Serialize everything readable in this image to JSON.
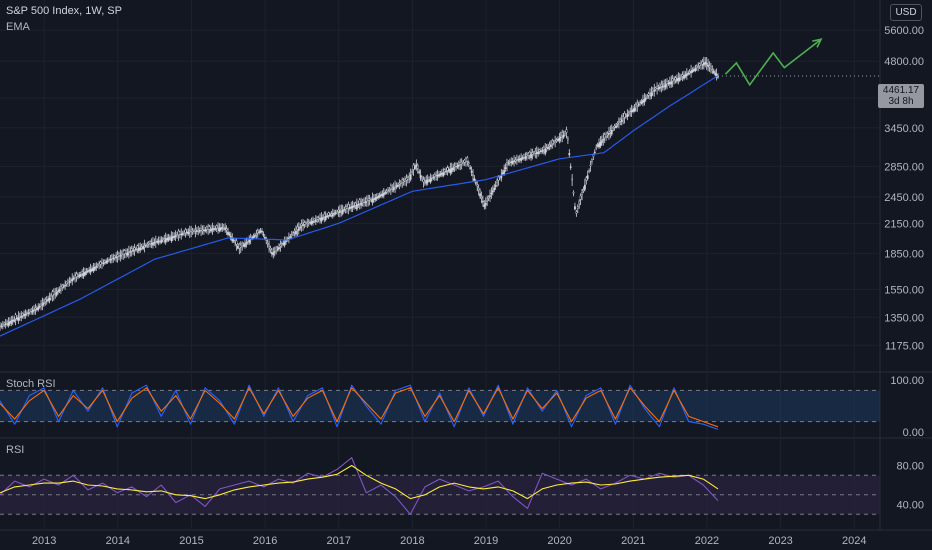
{
  "header": {
    "symbol_title": "S&P 500 Index, 1W, SP",
    "indicator_label": "EMA",
    "currency_button": "USD"
  },
  "price_tag": {
    "price": "4461.17",
    "countdown": "3d 8h"
  },
  "panes": {
    "stoch_label": "Stoch RSI",
    "rsi_label": "RSI"
  },
  "colors": {
    "background": "#131722",
    "grid": "#1e222d",
    "candle": "#d1d4dc",
    "ema": "#2962ff",
    "projection": "#4caf50",
    "stoch_k": "#2962ff",
    "stoch_d": "#ff6d00",
    "stoch_band": "#1e3a5f",
    "rsi_line": "#7e57c2",
    "rsi_ma": "#ffeb3b",
    "rsi_band": "#2a2440",
    "axis_text": "#b2b5be"
  },
  "chart_data": [
    {
      "type": "candlestick",
      "title": "S&P 500 Index, 1W, SP",
      "scale": "log",
      "ylim": [
        1050,
        6500
      ],
      "y_ticks": [
        "5600.00",
        "4800.00",
        "4000.00",
        "3450.00",
        "2850.00",
        "2450.00",
        "2150.00",
        "1850.00",
        "1550.00",
        "1350.00",
        "1175.00"
      ],
      "x_ticks": [
        "2013",
        "2014",
        "2015",
        "2016",
        "2017",
        "2018",
        "2019",
        "2020",
        "2021",
        "2022",
        "2023",
        "2024"
      ],
      "close_points": [
        {
          "x": 2012.4,
          "y": 1290
        },
        {
          "x": 2012.9,
          "y": 1410
        },
        {
          "x": 2013.4,
          "y": 1640
        },
        {
          "x": 2013.9,
          "y": 1800
        },
        {
          "x": 2014.5,
          "y": 1960
        },
        {
          "x": 2014.95,
          "y": 2060
        },
        {
          "x": 2015.45,
          "y": 2110
        },
        {
          "x": 2015.65,
          "y": 1900
        },
        {
          "x": 2015.95,
          "y": 2080
        },
        {
          "x": 2016.1,
          "y": 1850
        },
        {
          "x": 2016.5,
          "y": 2130
        },
        {
          "x": 2016.9,
          "y": 2250
        },
        {
          "x": 2017.5,
          "y": 2440
        },
        {
          "x": 2017.95,
          "y": 2680
        },
        {
          "x": 2018.05,
          "y": 2880
        },
        {
          "x": 2018.15,
          "y": 2640
        },
        {
          "x": 2018.75,
          "y": 2930
        },
        {
          "x": 2018.98,
          "y": 2350
        },
        {
          "x": 2019.3,
          "y": 2900
        },
        {
          "x": 2019.8,
          "y": 3100
        },
        {
          "x": 2020.1,
          "y": 3380
        },
        {
          "x": 2020.22,
          "y": 2240
        },
        {
          "x": 2020.5,
          "y": 3150
        },
        {
          "x": 2020.85,
          "y": 3600
        },
        {
          "x": 2021.3,
          "y": 4180
        },
        {
          "x": 2021.7,
          "y": 4480
        },
        {
          "x": 2021.98,
          "y": 4780
        },
        {
          "x": 2022.15,
          "y": 4461.17
        }
      ],
      "ema": {
        "name": "EMA",
        "points": [
          {
            "x": 2012.4,
            "y": 1230
          },
          {
            "x": 2013.5,
            "y": 1480
          },
          {
            "x": 2014.5,
            "y": 1800
          },
          {
            "x": 2015.5,
            "y": 2000
          },
          {
            "x": 2016.3,
            "y": 1980
          },
          {
            "x": 2017.0,
            "y": 2150
          },
          {
            "x": 2018.0,
            "y": 2520
          },
          {
            "x": 2019.0,
            "y": 2670
          },
          {
            "x": 2020.0,
            "y": 2960
          },
          {
            "x": 2020.6,
            "y": 3050
          },
          {
            "x": 2021.0,
            "y": 3400
          },
          {
            "x": 2021.5,
            "y": 3850
          },
          {
            "x": 2022.15,
            "y": 4470
          }
        ]
      },
      "projection": [
        {
          "x": 2022.25,
          "y": 4500
        },
        {
          "x": 2022.4,
          "y": 4760
        },
        {
          "x": 2022.58,
          "y": 4270
        },
        {
          "x": 2022.9,
          "y": 5000
        },
        {
          "x": 2023.05,
          "y": 4650
        },
        {
          "x": 2023.55,
          "y": 5350
        }
      ]
    },
    {
      "type": "line",
      "title": "Stoch RSI",
      "ylim": [
        0,
        100
      ],
      "y_ticks": [
        "100.00",
        "0.00"
      ],
      "bands": [
        20,
        80
      ],
      "series": [
        {
          "name": "K",
          "values": [
            60,
            15,
            70,
            85,
            20,
            80,
            40,
            85,
            10,
            75,
            90,
            30,
            80,
            15,
            85,
            60,
            15,
            90,
            30,
            85,
            20,
            70,
            85,
            10,
            90,
            50,
            15,
            80,
            90,
            20,
            75,
            10,
            85,
            30,
            90,
            15,
            85,
            40,
            80,
            10,
            70,
            85,
            15,
            90,
            45,
            10,
            85,
            20,
            15,
            5
          ]
        },
        {
          "name": "D",
          "values": [
            55,
            25,
            60,
            80,
            30,
            70,
            45,
            80,
            20,
            65,
            85,
            40,
            70,
            25,
            80,
            55,
            25,
            85,
            35,
            80,
            30,
            65,
            80,
            20,
            85,
            55,
            25,
            75,
            85,
            30,
            70,
            20,
            80,
            35,
            85,
            25,
            80,
            45,
            75,
            20,
            65,
            80,
            25,
            85,
            50,
            20,
            80,
            30,
            20,
            10
          ]
        }
      ]
    },
    {
      "type": "line",
      "title": "RSI",
      "ylim": [
        20,
        100
      ],
      "y_ticks": [
        "80.00",
        "40.00"
      ],
      "bands": [
        30,
        50,
        70
      ],
      "series": [
        {
          "name": "RSI",
          "values": [
            50,
            64,
            58,
            66,
            60,
            70,
            55,
            62,
            52,
            58,
            48,
            60,
            42,
            50,
            38,
            56,
            60,
            64,
            58,
            66,
            62,
            72,
            68,
            76,
            88,
            52,
            60,
            48,
            30,
            58,
            66,
            60,
            54,
            58,
            64,
            48,
            36,
            72,
            66,
            60,
            66,
            56,
            62,
            70,
            66,
            72,
            68,
            70,
            60,
            44
          ]
        },
        {
          "name": "RSI MA",
          "values": [
            52,
            58,
            60,
            62,
            62,
            64,
            60,
            59,
            56,
            55,
            53,
            54,
            50,
            49,
            46,
            50,
            55,
            58,
            60,
            62,
            63,
            66,
            68,
            71,
            80,
            70,
            62,
            56,
            46,
            50,
            58,
            62,
            58,
            56,
            58,
            54,
            46,
            56,
            60,
            62,
            63,
            60,
            61,
            64,
            66,
            68,
            69,
            70,
            66,
            56
          ]
        }
      ]
    }
  ]
}
